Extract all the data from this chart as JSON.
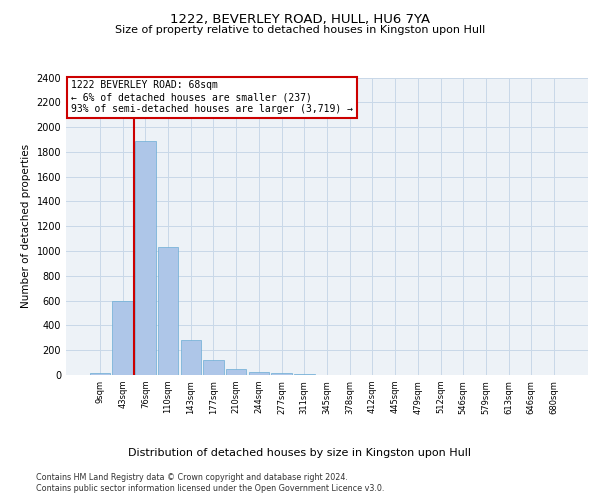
{
  "title": "1222, BEVERLEY ROAD, HULL, HU6 7YA",
  "subtitle": "Size of property relative to detached houses in Kingston upon Hull",
  "xlabel_bottom": "Distribution of detached houses by size in Kingston upon Hull",
  "ylabel": "Number of detached properties",
  "footnote1": "Contains HM Land Registry data © Crown copyright and database right 2024.",
  "footnote2": "Contains public sector information licensed under the Open Government Licence v3.0.",
  "bar_color": "#aec6e8",
  "bar_edge_color": "#6aadd5",
  "grid_color": "#c8d8e8",
  "annotation_box_color": "#cc0000",
  "vline_color": "#cc0000",
  "categories": [
    "9sqm",
    "43sqm",
    "76sqm",
    "110sqm",
    "143sqm",
    "177sqm",
    "210sqm",
    "244sqm",
    "277sqm",
    "311sqm",
    "345sqm",
    "378sqm",
    "412sqm",
    "445sqm",
    "479sqm",
    "512sqm",
    "546sqm",
    "579sqm",
    "613sqm",
    "646sqm",
    "680sqm"
  ],
  "values": [
    20,
    600,
    1890,
    1035,
    280,
    120,
    45,
    25,
    15,
    5,
    0,
    0,
    0,
    0,
    0,
    0,
    0,
    0,
    0,
    0,
    0
  ],
  "ylim": [
    0,
    2400
  ],
  "yticks": [
    0,
    200,
    400,
    600,
    800,
    1000,
    1200,
    1400,
    1600,
    1800,
    2000,
    2200,
    2400
  ],
  "vline_x_index": 1.5,
  "annotation_text": "1222 BEVERLEY ROAD: 68sqm\n← 6% of detached houses are smaller (237)\n93% of semi-detached houses are larger (3,719) →",
  "bg_color": "#edf2f7"
}
